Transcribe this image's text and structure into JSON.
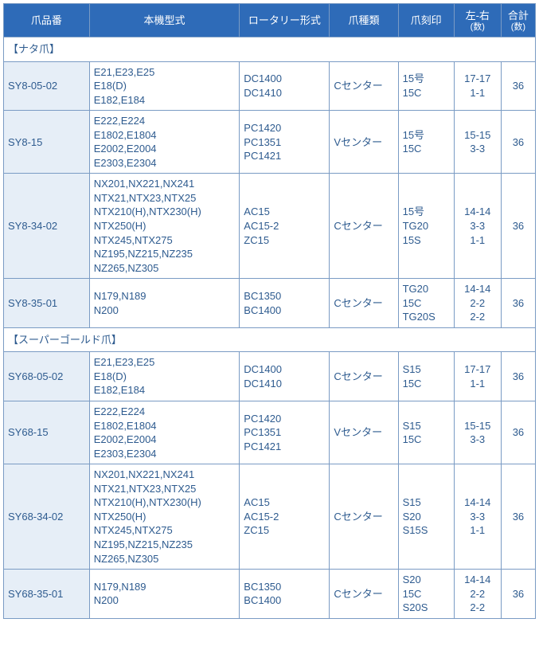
{
  "columns": [
    {
      "label": "爪品番"
    },
    {
      "label": "本機型式"
    },
    {
      "label": "ロータリー形式"
    },
    {
      "label": "爪種類"
    },
    {
      "label": "爪刻印"
    },
    {
      "label_top": "左-右",
      "label_bottom": "(数)"
    },
    {
      "label_top": "合計",
      "label_bottom": "(数)"
    }
  ],
  "sections": [
    {
      "title": "【ナタ爪】",
      "rows": [
        {
          "partno": "SY8-05-02",
          "model": "E21,E23,E25\nE18(D)\nE182,E184",
          "rotary": "DC1400\nDC1410",
          "type": "Cセンター",
          "stamp": "15号\n15C",
          "lr": "17-17\n1-1",
          "total": "36"
        },
        {
          "partno": "SY8-15",
          "model": "E222,E224\nE1802,E1804\nE2002,E2004\nE2303,E2304",
          "rotary": "PC1420\nPC1351\nPC1421",
          "type": "Vセンター",
          "stamp": "15号\n15C",
          "lr": "15-15\n3-3",
          "total": "36"
        },
        {
          "partno": "SY8-34-02",
          "model": "NX201,NX221,NX241\nNTX21,NTX23,NTX25\nNTX210(H),NTX230(H)\nNTX250(H)\nNTX245,NTX275\nNZ195,NZ215,NZ235\nNZ265,NZ305",
          "rotary": "AC15\nAC15-2\nZC15",
          "type": "Cセンター",
          "stamp": "15号\nTG20\n15S",
          "lr": "14-14\n3-3\n1-1",
          "total": "36"
        },
        {
          "partno": "SY8-35-01",
          "model": "N179,N189\nN200",
          "rotary": "BC1350\nBC1400",
          "type": "Cセンター",
          "stamp": "TG20\n15C\nTG20S",
          "lr": "14-14\n2-2\n2-2",
          "total": "36"
        }
      ]
    },
    {
      "title": "【スーパーゴールド爪】",
      "rows": [
        {
          "partno": "SY68-05-02",
          "model": "E21,E23,E25\nE18(D)\nE182,E184",
          "rotary": "DC1400\nDC1410",
          "type": "Cセンター",
          "stamp": "S15\n15C",
          "lr": "17-17\n1-1",
          "total": "36"
        },
        {
          "partno": "SY68-15",
          "model": "E222,E224\nE1802,E1804\nE2002,E2004\nE2303,E2304",
          "rotary": "PC1420\nPC1351\nPC1421",
          "type": "Vセンター",
          "stamp": "S15\n15C",
          "lr": "15-15\n3-3",
          "total": "36"
        },
        {
          "partno": "SY68-34-02",
          "model": "NX201,NX221,NX241\nNTX21,NTX23,NTX25\nNTX210(H),NTX230(H)\nNTX250(H)\nNTX245,NTX275\nNZ195,NZ215,NZ235\nNZ265,NZ305",
          "rotary": "AC15\nAC15-2\nZC15",
          "type": "Cセンター",
          "stamp": "S15\nS20\nS15S",
          "lr": "14-14\n3-3\n1-1",
          "total": "36"
        },
        {
          "partno": "SY68-35-01",
          "model": "N179,N189\nN200",
          "rotary": "BC1350\nBC1400",
          "type": "Cセンター",
          "stamp": "S20\n15C\nS20S",
          "lr": "14-14\n2-2\n2-2",
          "total": "36"
        }
      ]
    }
  ]
}
